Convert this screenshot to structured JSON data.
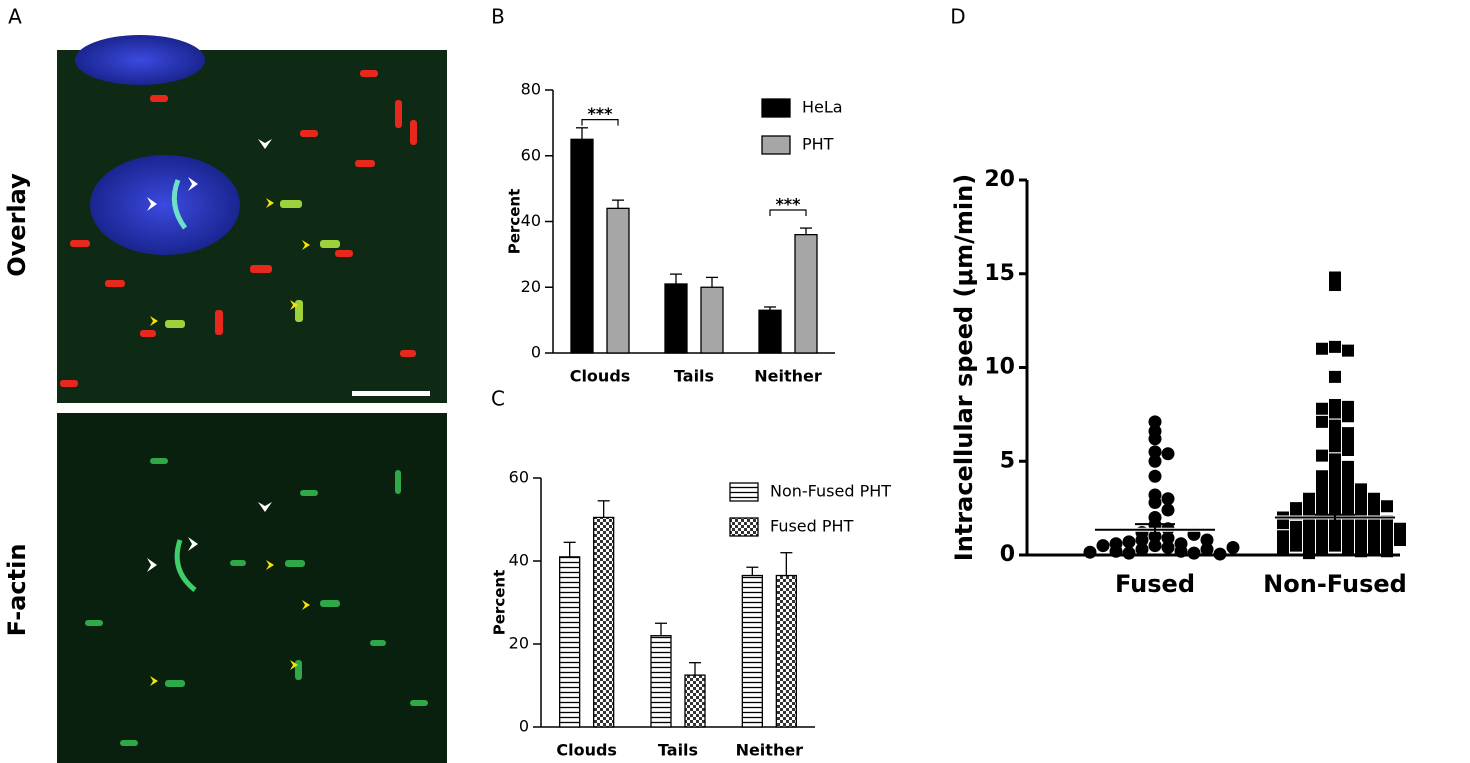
{
  "figure": {
    "panel_labels": [
      "A",
      "B",
      "C",
      "D"
    ],
    "image_labels": [
      "Overlay",
      "F-actin"
    ]
  },
  "chart_data": [
    {
      "type": "bar",
      "ylabel": "Percent",
      "categories": [
        "Clouds",
        "Tails",
        "Neither"
      ],
      "series": [
        {
          "name": "HeLa",
          "color": "#000000",
          "values": [
            65,
            21,
            13
          ],
          "errors": [
            3.5,
            3,
            1
          ]
        },
        {
          "name": "PHT",
          "color": "#a6a6a6",
          "values": [
            44,
            20,
            36
          ],
          "errors": [
            2.5,
            3,
            2
          ]
        }
      ],
      "ylim": [
        0,
        80
      ],
      "yticks": [
        0,
        20,
        40,
        60,
        80
      ],
      "annotations": [
        {
          "text": "***",
          "y": 71
        },
        {
          "text": "***",
          "y": 43.5
        }
      ]
    },
    {
      "type": "bar",
      "ylabel": "Percent",
      "categories": [
        "Clouds",
        "Tails",
        "Neither"
      ],
      "series": [
        {
          "name": "Non-Fused PHT",
          "color": "#000000",
          "pattern": "hlines",
          "values": [
            41,
            22,
            36.5
          ],
          "errors": [
            3.5,
            3,
            2
          ]
        },
        {
          "name": "Fused PHT",
          "color": "#000000",
          "pattern": "checker",
          "values": [
            50.5,
            12.5,
            36.5
          ],
          "errors": [
            4,
            3,
            5.5
          ]
        }
      ],
      "ylim": [
        0,
        60
      ],
      "yticks": [
        0,
        20,
        40,
        60
      ]
    },
    {
      "type": "strip",
      "ylabel": "Intracellular speed  (μm/min)",
      "categories": [
        "Fused",
        "Non-Fused"
      ],
      "series": [
        {
          "marker": "circle",
          "color": "#000000",
          "mean": 1.35,
          "error": 0.3,
          "values": [
            7.1,
            6.6,
            6.2,
            5.5,
            5.4,
            5.0,
            4.2,
            3.2,
            3.0,
            2.8,
            2.4,
            2.0,
            1.6,
            1.4,
            1.2,
            1.0,
            0.9,
            0.8,
            0.6,
            0.5,
            0.4,
            0.3,
            0.2,
            0.1,
            0.1,
            0.2,
            0.3,
            0.5,
            0.7,
            1.1,
            0.05,
            0.15,
            0.6,
            0.8,
            0.4
          ]
        },
        {
          "marker": "square",
          "color": "#000000",
          "mean": 2.0,
          "error": 0.15,
          "values": [
            14.8,
            14.4,
            11.1,
            10.9,
            11.0,
            9.5,
            8.0,
            7.9,
            7.8,
            7.6,
            7.4,
            7.1,
            6.9,
            6.5,
            6.3,
            6.1,
            5.8,
            5.6,
            5.3,
            5.1,
            4.7,
            4.5,
            4.3,
            4.2,
            4.0,
            3.8,
            3.6,
            3.5,
            3.4,
            3.3,
            3.2,
            3.1,
            3.0,
            2.9,
            2.8,
            2.7,
            2.6,
            2.5,
            2.4,
            2.3,
            2.2,
            2.1,
            2.0,
            1.9,
            1.8,
            1.7,
            1.6,
            1.5,
            1.4,
            1.3,
            1.2,
            1.1,
            1.0,
            0.9,
            0.8,
            0.7,
            0.6,
            0.5,
            0.4,
            0.3,
            0.2,
            0.1,
            2.5,
            2.2,
            1.8,
            1.5,
            1.2,
            0.9,
            0.6,
            0.3,
            2.0,
            1.0,
            0.5,
            0.2,
            1.7,
            1.4,
            0.8,
            0.4,
            2.6,
            3.0
          ]
        }
      ],
      "ylim": [
        0,
        20
      ],
      "yticks": [
        0,
        5,
        10,
        15,
        20
      ]
    }
  ]
}
